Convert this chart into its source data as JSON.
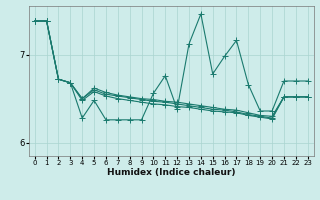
{
  "xlabel": "Humidex (Indice chaleur)",
  "ylabel": "",
  "bg_color": "#ceecea",
  "grid_color": "#aad4d0",
  "line_color": "#1a7a6e",
  "xlim": [
    -0.5,
    23.5
  ],
  "ylim": [
    5.85,
    7.55
  ],
  "yticks": [
    6,
    7
  ],
  "xticks": [
    0,
    1,
    2,
    3,
    4,
    5,
    6,
    7,
    8,
    9,
    10,
    11,
    12,
    13,
    14,
    15,
    16,
    17,
    18,
    19,
    20,
    21,
    22,
    23
  ],
  "series": [
    [
      7.38,
      7.38,
      6.72,
      6.68,
      6.28,
      6.48,
      6.26,
      6.26,
      6.26,
      6.26,
      6.56,
      6.76,
      6.38,
      7.12,
      7.46,
      6.78,
      6.98,
      7.16,
      6.66,
      6.36,
      6.36,
      6.7,
      6.7,
      6.7
    ],
    [
      7.38,
      7.38,
      6.72,
      6.68,
      6.48,
      6.58,
      6.53,
      6.5,
      6.48,
      6.46,
      6.44,
      6.43,
      6.41,
      6.4,
      6.38,
      6.36,
      6.35,
      6.34,
      6.31,
      6.29,
      6.27,
      6.52,
      6.52,
      6.52
    ],
    [
      7.38,
      7.38,
      6.72,
      6.68,
      6.5,
      6.6,
      6.55,
      6.53,
      6.51,
      6.49,
      6.47,
      6.46,
      6.44,
      6.42,
      6.4,
      6.38,
      6.37,
      6.35,
      6.32,
      6.3,
      6.28,
      6.52,
      6.52,
      6.52
    ],
    [
      7.38,
      7.38,
      6.72,
      6.68,
      6.5,
      6.62,
      6.57,
      6.54,
      6.52,
      6.5,
      6.49,
      6.47,
      6.46,
      6.44,
      6.42,
      6.4,
      6.38,
      6.37,
      6.34,
      6.31,
      6.3,
      6.52,
      6.52,
      6.52
    ]
  ],
  "marker": "+",
  "markersize": 4,
  "linewidth": 0.8,
  "tick_fontsize_x": 5,
  "tick_fontsize_y": 6,
  "xlabel_fontsize": 6.5
}
